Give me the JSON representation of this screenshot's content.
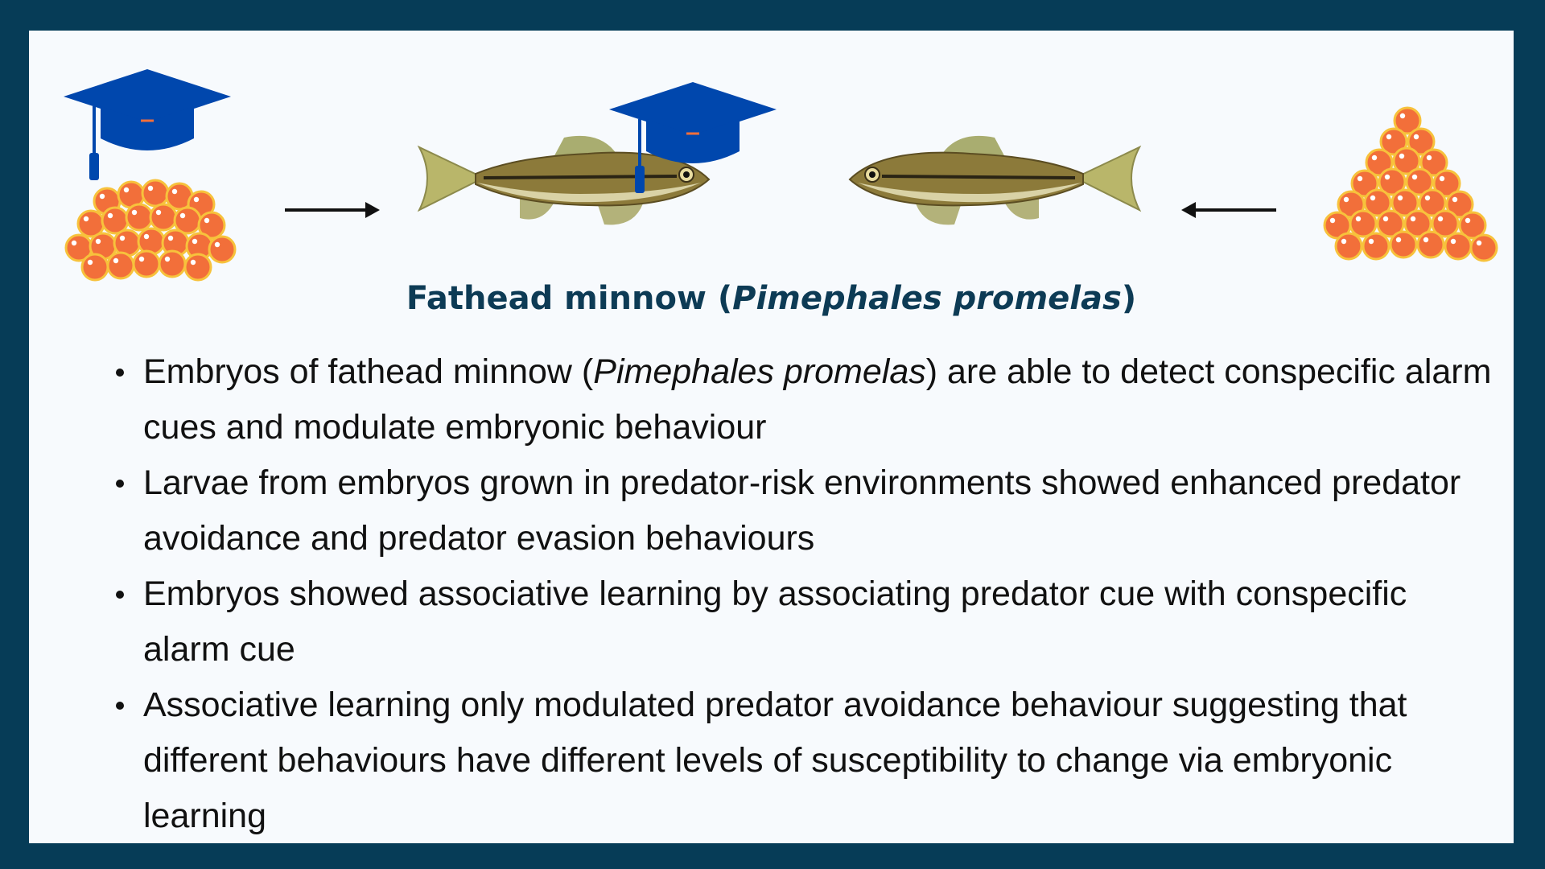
{
  "title": {
    "prefix": "Fathead minnow (",
    "species": "Pimephales promelas",
    "suffix": ")"
  },
  "bullets": [
    {
      "before": "Embryos of fathead minnow (",
      "italic": "Pimephales promelas",
      "after": ") are able to detect conspecific alarm cues and modulate embryonic behaviour"
    },
    {
      "text": "Larvae from embryos grown in predator-risk environments showed enhanced predator avoidance and predator evasion behaviours"
    },
    {
      "text": "Embryos showed associative learning by associating predator cue with conspecific alarm cue"
    },
    {
      "text": "Associative learning only modulated predator avoidance behaviour suggesting that different behaviours have different levels of susceptibility to change via embryonic learning"
    }
  ],
  "colors": {
    "frame": "#063c57",
    "background": "#f7fafd",
    "title": "#0d3b55",
    "egg": "#f26f3a",
    "egg_outline": "#f7c23c",
    "cap": "#0047ad"
  },
  "icons": [
    "egg-cluster-icon",
    "graduation-cap-icon",
    "arrow-right-icon",
    "arrow-left-icon",
    "fish-icon"
  ]
}
